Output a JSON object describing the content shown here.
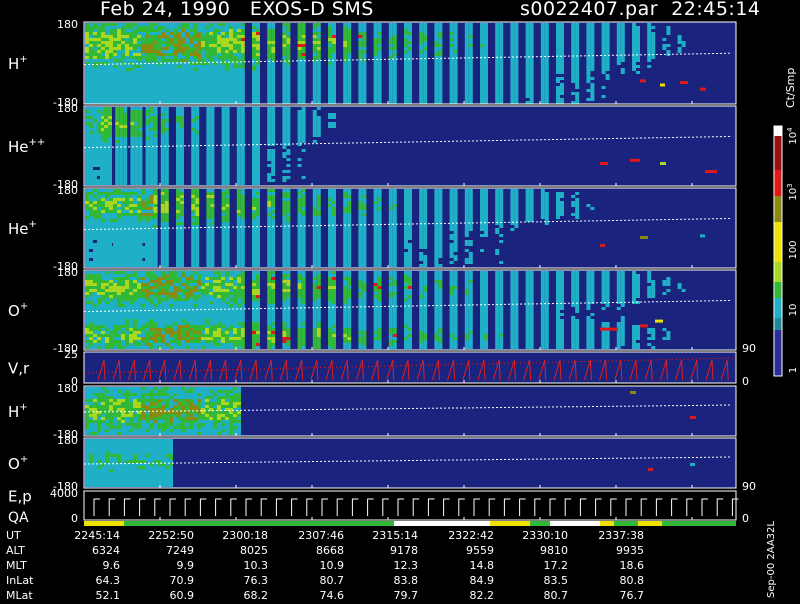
{
  "header": {
    "date": "Feb 24, 1990",
    "instrument": "EXOS-D SMS",
    "file": "s0022407.par",
    "time": "22:45:14"
  },
  "panels": [
    {
      "id": "h-plus",
      "label": "H",
      "sup": "+",
      "top": "180",
      "bottom": "-180",
      "right_ticks": []
    },
    {
      "id": "he-pp",
      "label": "He",
      "sup": "++",
      "top": "180",
      "bottom": "-180",
      "right_ticks": []
    },
    {
      "id": "he-plus",
      "label": "He",
      "sup": "+",
      "top": "180",
      "bottom": "-180",
      "right_ticks": []
    },
    {
      "id": "o-plus",
      "label": "O",
      "sup": "+",
      "top": "180",
      "bottom": "-180",
      "right_ticks": [
        "90"
      ]
    },
    {
      "id": "vr",
      "label": "V,r",
      "sup": "",
      "top": "25",
      "bottom": "0",
      "right_ticks": [
        "0"
      ]
    },
    {
      "id": "h-plus-2",
      "label": "H",
      "sup": "+",
      "top": "180",
      "bottom": "-180",
      "right_ticks": []
    },
    {
      "id": "o-plus-2",
      "label": "O",
      "sup": "+",
      "top": "180",
      "bottom": "-180",
      "right_ticks": [
        "90"
      ]
    },
    {
      "id": "ep",
      "label": "E,p",
      "sup": "",
      "top": "4000",
      "bottom": "0",
      "right_ticks": [
        "0"
      ]
    }
  ],
  "qa_label": "QA",
  "colorbar": {
    "unit": "Ct/Smp",
    "ticks": [
      {
        "base": "10",
        "exp": "4"
      },
      {
        "base": "10",
        "exp": "3"
      },
      {
        "base": "100",
        "exp": ""
      },
      {
        "base": "10",
        "exp": ""
      },
      {
        "base": "1",
        "exp": ""
      }
    ]
  },
  "footer_code": "Sep-00  2AA32L",
  "table": {
    "rows": [
      {
        "label": "UT",
        "values": [
          "2245:14",
          "2252:50",
          "2300:18",
          "2307:46",
          "2315:14",
          "2322:42",
          "2330:10",
          "2337:38"
        ]
      },
      {
        "label": "ALT",
        "values": [
          "6324",
          "7249",
          "8025",
          "8668",
          "9178",
          "9559",
          "9810",
          "9935"
        ]
      },
      {
        "label": "MLT",
        "values": [
          "9.6",
          "9.9",
          "10.3",
          "10.9",
          "12.3",
          "14.8",
          "17.2",
          "18.6"
        ]
      },
      {
        "label": "InLat",
        "values": [
          "64.3",
          "70.9",
          "76.3",
          "80.7",
          "83.8",
          "84.9",
          "83.5",
          "80.8"
        ]
      },
      {
        "label": "MLat",
        "values": [
          "52.1",
          "60.9",
          "68.2",
          "74.6",
          "79.7",
          "82.2",
          "80.7",
          "76.7"
        ]
      }
    ]
  },
  "colors": {
    "background": "#1a237e",
    "frame": "#ffffff",
    "scale": [
      "#2a2a9a",
      "#1fb0c8",
      "#32b838",
      "#a8d820",
      "#f0e000",
      "#8a8a10",
      "#e01818",
      "#ffffff"
    ]
  }
}
